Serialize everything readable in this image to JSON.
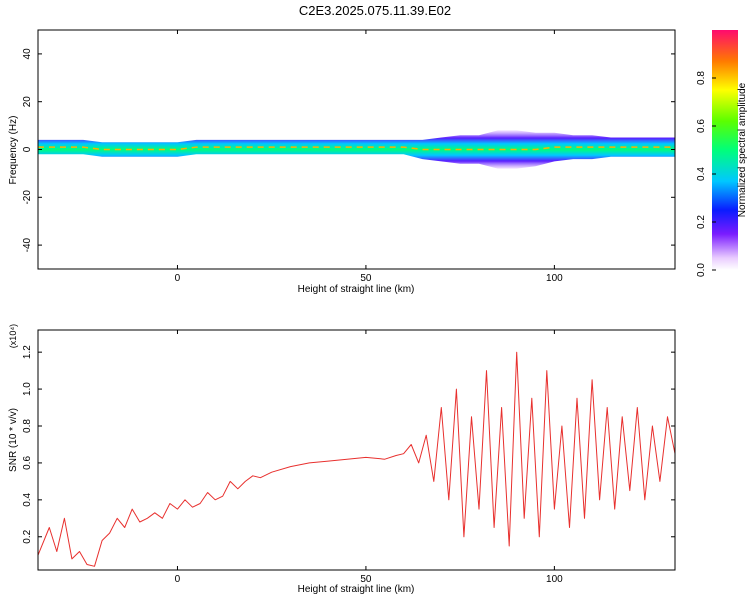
{
  "title": "C2E3.2025.075.11.39.E02",
  "chart_data": [
    {
      "type": "heatmap",
      "xlabel": "Height of straight line (km)",
      "ylabel": "Frequency (Hz)",
      "xlim": [
        -37,
        132
      ],
      "ylim": [
        -50,
        50
      ],
      "xticks": [
        "0",
        "50",
        "100"
      ],
      "yticks": [
        "-40",
        "-20",
        "0",
        "20",
        "40"
      ],
      "colorbar": {
        "label": "Normalized spectral amplitude",
        "range": [
          0,
          1
        ],
        "ticks": [
          "0.0",
          "0.2",
          "0.4",
          "0.6",
          "0.8"
        ]
      },
      "band": {
        "x": [
          -37,
          -30,
          -25,
          -20,
          -15,
          -10,
          -5,
          0,
          5,
          10,
          20,
          30,
          40,
          50,
          55,
          60,
          65,
          70,
          75,
          80,
          85,
          90,
          95,
          100,
          105,
          110,
          115,
          120,
          125,
          132
        ],
        "center_hz": [
          1,
          1,
          1,
          0,
          0,
          0,
          0,
          0,
          1,
          1,
          1,
          1,
          1,
          1,
          1,
          1,
          0,
          0,
          0,
          0,
          0,
          0,
          0,
          1,
          1,
          1,
          1,
          1,
          1,
          1
        ],
        "halfwidth_hz": [
          3,
          3,
          3,
          3,
          3,
          3,
          3,
          3,
          3,
          3,
          3,
          3,
          3,
          3,
          3,
          3,
          4,
          5,
          6,
          6,
          8,
          8,
          7,
          6,
          5,
          5,
          4,
          4,
          4,
          4
        ]
      },
      "grid": false
    },
    {
      "type": "line",
      "xlabel": "Height of straight line (km)",
      "ylabel": "SNR (10 * v/v)",
      "y_multiplier": "(x10⁴)",
      "xlim": [
        -37,
        132
      ],
      "ylim": [
        0.02,
        1.32
      ],
      "xticks": [
        "0",
        "50",
        "100"
      ],
      "yticks": [
        "0.2",
        "0.4",
        "0.6",
        "0.8",
        "1.0",
        "1.2"
      ],
      "color": "#e8302e",
      "grid": false,
      "series": [
        {
          "x": [
            -37,
            -34,
            -32,
            -30,
            -28,
            -26,
            -24,
            -22,
            -20,
            -18,
            -16,
            -14,
            -12,
            -10,
            -8,
            -6,
            -4,
            -2,
            0,
            2,
            4,
            6,
            8,
            10,
            12,
            14,
            16,
            18,
            20,
            22,
            25,
            30,
            35,
            40,
            45,
            50,
            55,
            58,
            60,
            62,
            64,
            66,
            68,
            70,
            72,
            74,
            76,
            78,
            80,
            82,
            84,
            86,
            88,
            90,
            92,
            94,
            96,
            98,
            100,
            102,
            104,
            106,
            108,
            110,
            112,
            114,
            116,
            118,
            120,
            122,
            124,
            126,
            128,
            130,
            132
          ],
          "y": [
            0.1,
            0.25,
            0.12,
            0.3,
            0.08,
            0.12,
            0.05,
            0.04,
            0.18,
            0.22,
            0.3,
            0.25,
            0.35,
            0.28,
            0.3,
            0.33,
            0.3,
            0.38,
            0.35,
            0.4,
            0.36,
            0.38,
            0.44,
            0.4,
            0.42,
            0.5,
            0.46,
            0.5,
            0.53,
            0.52,
            0.55,
            0.58,
            0.6,
            0.61,
            0.62,
            0.63,
            0.62,
            0.64,
            0.65,
            0.7,
            0.6,
            0.75,
            0.5,
            0.9,
            0.4,
            1.0,
            0.2,
            0.85,
            0.35,
            1.1,
            0.25,
            0.9,
            0.15,
            1.2,
            0.3,
            0.95,
            0.2,
            1.1,
            0.35,
            0.8,
            0.25,
            0.95,
            0.3,
            1.05,
            0.4,
            0.9,
            0.35,
            0.85,
            0.45,
            0.9,
            0.4,
            0.8,
            0.5,
            0.85,
            0.65
          ]
        }
      ]
    }
  ]
}
